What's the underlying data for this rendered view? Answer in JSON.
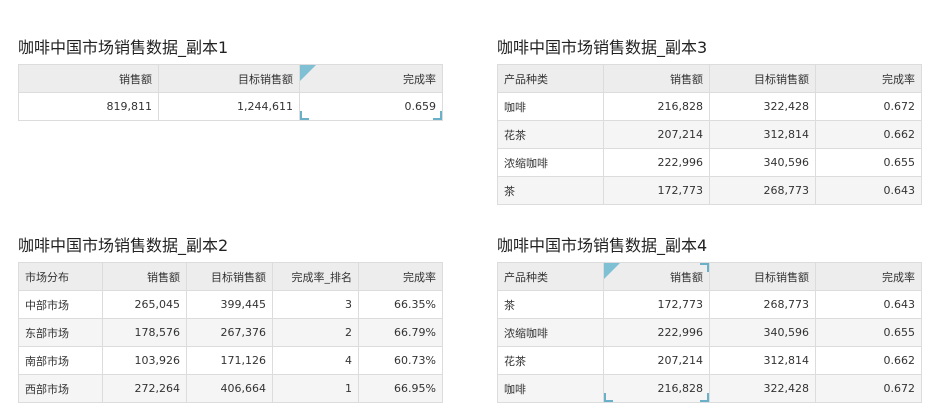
{
  "widgets": {
    "t1": {
      "title": "咖啡中国市场销售数据_副本1",
      "headers": [
        "销售额",
        "目标销售额",
        "完成率"
      ],
      "row": [
        "819,811",
        "1,244,611",
        "0.659"
      ]
    },
    "t2": {
      "title": "咖啡中国市场销售数据_副本2",
      "headers": [
        "市场分布",
        "销售额",
        "目标销售额",
        "完成率_排名",
        "完成率"
      ],
      "rows": [
        [
          "中部市场",
          "265,045",
          "399,445",
          "3",
          "66.35%"
        ],
        [
          "东部市场",
          "178,576",
          "267,376",
          "2",
          "66.79%"
        ],
        [
          "南部市场",
          "103,926",
          "171,126",
          "4",
          "60.73%"
        ],
        [
          "西部市场",
          "272,264",
          "406,664",
          "1",
          "66.95%"
        ]
      ]
    },
    "t3": {
      "title": "咖啡中国市场销售数据_副本3",
      "headers": [
        "产品种类",
        "销售额",
        "目标销售额",
        "完成率"
      ],
      "rows": [
        [
          "咖啡",
          "216,828",
          "322,428",
          "0.672"
        ],
        [
          "花茶",
          "207,214",
          "312,814",
          "0.662"
        ],
        [
          "浓缩咖啡",
          "222,996",
          "340,596",
          "0.655"
        ],
        [
          "茶",
          "172,773",
          "268,773",
          "0.643"
        ]
      ]
    },
    "t4": {
      "title": "咖啡中国市场销售数据_副本4",
      "headers": [
        "产品种类",
        "销售额",
        "目标销售额",
        "完成率"
      ],
      "rows": [
        [
          "茶",
          "172,773",
          "268,773",
          "0.643"
        ],
        [
          "浓缩咖啡",
          "222,996",
          "340,596",
          "0.655"
        ],
        [
          "花茶",
          "207,214",
          "312,814",
          "0.662"
        ],
        [
          "咖啡",
          "216,828",
          "322,428",
          "0.672"
        ]
      ]
    }
  },
  "colors": {
    "header_bg": "#ededed",
    "alt_row_bg": "#f5f5f5",
    "selection_accent": "#7fc0d4"
  }
}
